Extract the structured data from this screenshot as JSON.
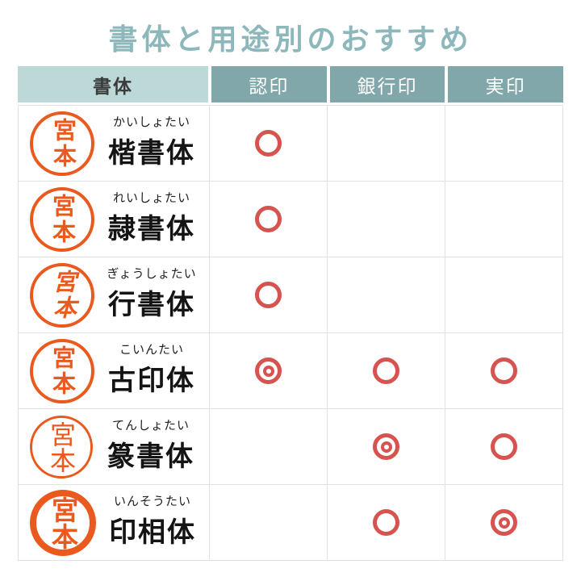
{
  "title": "書体と用途別のおすすめ",
  "colors": {
    "title_teal": "#8cb7bb",
    "header_light_bg": "#bcd9d8",
    "header_dark_bg": "#82a7aa",
    "seal_orange": "#ea5a1e",
    "mark_red": "#d6534f",
    "grid_gray": "#e2e2e2"
  },
  "table": {
    "headers": [
      "書体",
      "認印",
      "銀行印",
      "実印"
    ],
    "rows": [
      {
        "seal_text": "宮本",
        "furigana": "かいしょたい",
        "name": "楷書体",
        "marks": [
          "circle",
          "none",
          "none"
        ]
      },
      {
        "seal_text": "宮本",
        "furigana": "れいしょたい",
        "name": "隷書体",
        "marks": [
          "circle",
          "none",
          "none"
        ]
      },
      {
        "seal_text": "宮本",
        "furigana": "ぎょうしょたい",
        "name": "行書体",
        "marks": [
          "circle",
          "none",
          "none"
        ]
      },
      {
        "seal_text": "宮本",
        "furigana": "こいんたい",
        "name": "古印体",
        "marks": [
          "double-circle",
          "circle",
          "circle"
        ]
      },
      {
        "seal_text": "宮本",
        "furigana": "てんしょたい",
        "name": "篆書体",
        "marks": [
          "none",
          "double-circle",
          "circle"
        ]
      },
      {
        "seal_text": "宮本",
        "furigana": "いんそうたい",
        "name": "印相体",
        "marks": [
          "none",
          "circle",
          "double-circle"
        ]
      }
    ]
  },
  "chart_data": {
    "type": "table",
    "title": "書体と用途別のおすすめ",
    "columns": [
      "書体",
      "認印",
      "銀行印",
      "実印"
    ],
    "rows": [
      {
        "書体": "楷書体（かいしょたい）",
        "認印": "○",
        "銀行印": "",
        "実印": ""
      },
      {
        "書体": "隷書体（れいしょたい）",
        "認印": "○",
        "銀行印": "",
        "実印": ""
      },
      {
        "書体": "行書体（ぎょうしょたい）",
        "認印": "○",
        "銀行印": "",
        "実印": ""
      },
      {
        "書体": "古印体（こいんたい）",
        "認印": "◎",
        "銀行印": "○",
        "実印": "○"
      },
      {
        "書体": "篆書体（てんしょたい）",
        "認印": "",
        "銀行印": "◎",
        "実印": "○"
      },
      {
        "書体": "印相体（いんそうたい）",
        "認印": "",
        "銀行印": "○",
        "実印": "◎"
      }
    ],
    "legend_position": "none",
    "grid": true
  }
}
